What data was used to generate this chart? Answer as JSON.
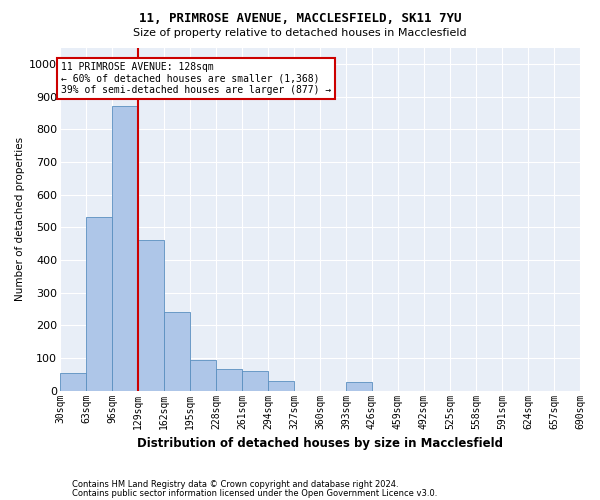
{
  "title1": "11, PRIMROSE AVENUE, MACCLESFIELD, SK11 7YU",
  "title2": "Size of property relative to detached houses in Macclesfield",
  "xlabel": "Distribution of detached houses by size in Macclesfield",
  "ylabel": "Number of detached properties",
  "footer1": "Contains HM Land Registry data © Crown copyright and database right 2024.",
  "footer2": "Contains public sector information licensed under the Open Government Licence v3.0.",
  "annotation_line1": "11 PRIMROSE AVENUE: 128sqm",
  "annotation_line2": "← 60% of detached houses are smaller (1,368)",
  "annotation_line3": "39% of semi-detached houses are larger (877) →",
  "property_size": 128,
  "bin_edges": [
    30,
    63,
    96,
    129,
    162,
    195,
    228,
    261,
    294,
    327,
    360,
    393,
    426,
    459,
    492,
    525,
    558,
    591,
    624,
    657,
    690
  ],
  "bar_heights": [
    55,
    530,
    870,
    460,
    240,
    95,
    65,
    60,
    30,
    0,
    0,
    25,
    0,
    0,
    0,
    0,
    0,
    0,
    0,
    0
  ],
  "bar_color": "#aec6e8",
  "bar_edge_color": "#5a8fc0",
  "line_color": "#cc0000",
  "background_color": "#e8eef7",
  "annotation_box_edge": "#cc0000",
  "ylim": [
    0,
    1050
  ],
  "yticks": [
    0,
    100,
    200,
    300,
    400,
    500,
    600,
    700,
    800,
    900,
    1000
  ]
}
